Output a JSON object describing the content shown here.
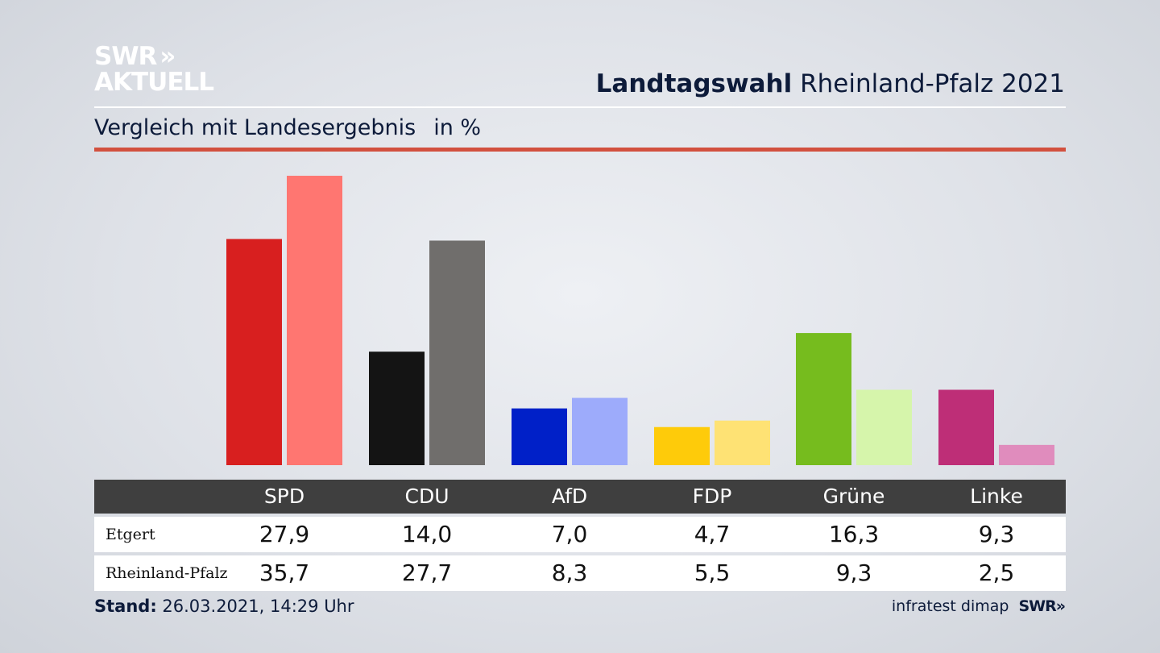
{
  "brand": {
    "logo_line1": "SWR",
    "logo_chevrons": "»",
    "logo_line2": "AKTUELL"
  },
  "header": {
    "title_bold": "Landtagswahl",
    "title_rest": "Rheinland-Pfalz 2021"
  },
  "subtitle": {
    "text": "Vergleich mit Landesergebnis",
    "unit": "in %"
  },
  "chart_data": {
    "type": "bar",
    "categories": [
      "SPD",
      "CDU",
      "AfD",
      "FDP",
      "Grüne",
      "Linke"
    ],
    "series": [
      {
        "name": "Etgert",
        "values": [
          27.9,
          14.0,
          7.0,
          4.7,
          16.3,
          9.3
        ],
        "colors": [
          "#d81f1f",
          "#141414",
          "#0020c8",
          "#fecb0a",
          "#76bc1e",
          "#be2e77"
        ]
      },
      {
        "name": "Rheinland-Pfalz",
        "values": [
          35.7,
          27.7,
          8.3,
          5.5,
          9.3,
          2.5
        ],
        "colors": [
          "#ff7671",
          "#706e6c",
          "#9dabfb",
          "#fee274",
          "#d6f5ab",
          "#e08cbd"
        ]
      }
    ],
    "ylim": [
      0,
      36
    ]
  },
  "table": {
    "headers": [
      "SPD",
      "CDU",
      "AfD",
      "FDP",
      "Grüne",
      "Linke"
    ],
    "rows": [
      {
        "label": "Etgert",
        "values": [
          "27,9",
          "14,0",
          "7,0",
          "4,7",
          "16,3",
          "9,3"
        ]
      },
      {
        "label": "Rheinland-Pfalz",
        "values": [
          "35,7",
          "27,7",
          "8,3",
          "5,5",
          "9,3",
          "2,5"
        ]
      }
    ]
  },
  "footer": {
    "stand_label": "Stand:",
    "stand_value": "26.03.2021, 14:29 Uhr",
    "source": "infratest dimap",
    "source_logo": "SWR»"
  }
}
